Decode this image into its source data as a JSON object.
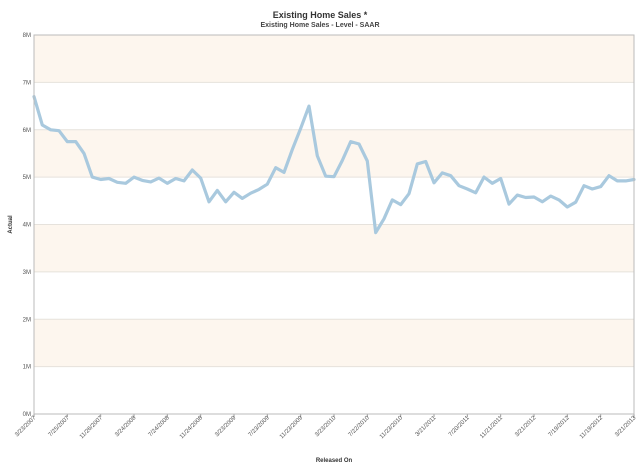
{
  "chart_data": {
    "type": "line",
    "title": "Existing Home Sales *",
    "subtitle": "Existing Home Sales - Level - SAAR",
    "xlabel": "Released On",
    "ylabel": "Actual",
    "ylim": [
      0,
      8000000
    ],
    "y_tick_labels": [
      "0M",
      "1M",
      "2M",
      "3M",
      "4M",
      "5M",
      "6M",
      "7M",
      "8M"
    ],
    "x_tick_labels": [
      "3/23/2007",
      "7/25/2007",
      "11/26/2007",
      "3/24/2008",
      "7/24/2008",
      "11/24/2008",
      "3/23/2009",
      "7/23/2009",
      "11/23/2009",
      "3/23/2010",
      "7/22/2010",
      "11/23/2010",
      "3/21/2011",
      "7/20/2011",
      "11/21/2011",
      "3/21/2012",
      "7/19/2012",
      "11/19/2012",
      "3/21/2013"
    ],
    "grid": true,
    "band_colors": [
      "#fdf6ee",
      "#ffffff"
    ],
    "series": [
      {
        "color": "#a9c9de",
        "values": [
          6700000,
          6100000,
          6000000,
          5980000,
          5750000,
          5750000,
          5500000,
          5000000,
          4950000,
          4970000,
          4890000,
          4870000,
          5000000,
          4930000,
          4900000,
          4980000,
          4870000,
          4970000,
          4920000,
          5150000,
          4980000,
          4480000,
          4720000,
          4480000,
          4680000,
          4550000,
          4660000,
          4740000,
          4850000,
          5200000,
          5100000,
          5580000,
          6030000,
          6500000,
          5450000,
          5020000,
          5010000,
          5350000,
          5750000,
          5700000,
          5340000,
          3830000,
          4120000,
          4520000,
          4420000,
          4650000,
          5280000,
          5330000,
          4880000,
          5090000,
          5030000,
          4820000,
          4750000,
          4670000,
          5000000,
          4870000,
          4970000,
          4430000,
          4620000,
          4570000,
          4580000,
          4480000,
          4600000,
          4520000,
          4370000,
          4470000,
          4820000,
          4750000,
          4800000,
          5030000,
          4920000,
          4920000,
          4950000
        ]
      }
    ]
  }
}
